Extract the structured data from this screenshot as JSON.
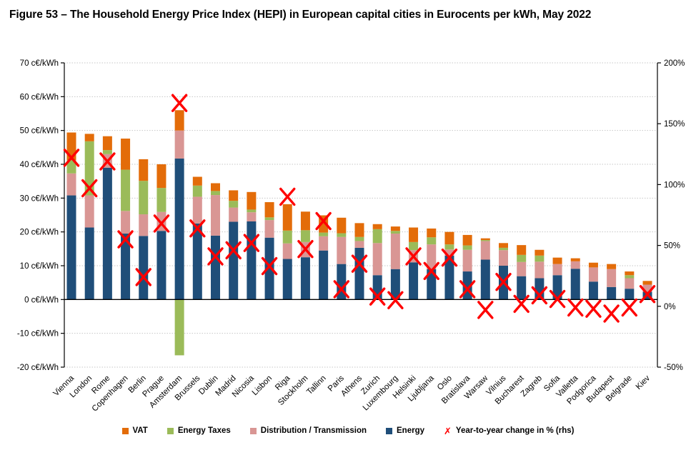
{
  "title": "Figure 53 – The Household Energy Price Index (HEPI) in European capital cities in Eurocents per kWh, May 2022",
  "chart_data": {
    "type": "bar",
    "stacked": true,
    "grid": "dotted horizontal",
    "legend_position": "bottom",
    "categories": [
      "Vienna",
      "London",
      "Rome",
      "Copenhagen",
      "Berlin",
      "Prague",
      "Amsterdam",
      "Brussels",
      "Dublin",
      "Madrid",
      "Nicosia",
      "Lisbon",
      "Riga",
      "Stockholm",
      "Tallinn",
      "Paris",
      "Athens",
      "Zurich",
      "Luxembourg",
      "Helsinki",
      "Ljubljana",
      "Oslo",
      "Bratislava",
      "Warsaw",
      "Vilnius",
      "Bucharest",
      "Zagreb",
      "Sofia",
      "Valletta",
      "Podgorica",
      "Budapest",
      "Belgrade",
      "Kiev"
    ],
    "series": [
      {
        "name": "Energy",
        "color": "#1F4E79",
        "values": [
          30.8,
          21.3,
          39.0,
          19.5,
          18.8,
          20.3,
          41.7,
          22.5,
          18.9,
          23.0,
          23.1,
          18.3,
          12.0,
          12.5,
          14.5,
          10.5,
          15.3,
          7.2,
          9.0,
          11.0,
          9.0,
          13.0,
          8.3,
          11.8,
          10.0,
          6.9,
          6.3,
          7.2,
          9.1,
          5.3,
          3.7,
          3.2,
          2.3
        ]
      },
      {
        "name": "Distribution / Transmission",
        "color": "#D99694",
        "values": [
          6.5,
          9.5,
          4.0,
          6.7,
          6.4,
          5.6,
          8.3,
          7.9,
          12.0,
          4.2,
          2.7,
          5.2,
          4.6,
          4.5,
          4.2,
          8.0,
          2.0,
          9.5,
          10.5,
          3.6,
          7.3,
          1.8,
          6.4,
          5.5,
          4.6,
          4.2,
          4.9,
          3.3,
          2.2,
          4.2,
          5.3,
          3.1,
          2.1
        ]
      },
      {
        "name": "Energy Taxes",
        "color": "#9BBB59",
        "values": [
          3.9,
          16.0,
          1.2,
          12.2,
          9.9,
          7.1,
          -16.5,
          3.3,
          1.2,
          2.0,
          0.8,
          0.8,
          3.8,
          3.5,
          1.1,
          1.1,
          1.2,
          4.1,
          0.8,
          2.4,
          2.1,
          1.5,
          1.3,
          0.3,
          0.7,
          2.1,
          1.8,
          0,
          0,
          0,
          0,
          0.9,
          0
        ]
      },
      {
        "name": "VAT",
        "color": "#E36C09",
        "values": [
          8.2,
          2.2,
          4.1,
          9.2,
          6.4,
          7.0,
          6.0,
          2.6,
          2.3,
          3.1,
          5.2,
          4.5,
          7.8,
          5.5,
          5.1,
          4.6,
          4.1,
          1.5,
          1.3,
          4.3,
          2.6,
          3.7,
          3.1,
          0.5,
          1.4,
          2.9,
          1.7,
          1.9,
          0.9,
          1.4,
          1.5,
          1.1,
          1.1
        ]
      }
    ],
    "markers": {
      "name": "Year-to-year change in % (rhs)",
      "color": "#FF0000",
      "axis": "right",
      "values": [
        122,
        97,
        119,
        55,
        24,
        68,
        167,
        64,
        41,
        46,
        52,
        33,
        90,
        47,
        70,
        14,
        35,
        8,
        5,
        41,
        29,
        40,
        14,
        -3,
        20,
        2,
        9,
        6,
        -1,
        -2,
        -6,
        -1,
        10
      ]
    },
    "left_axis": {
      "min": -20,
      "max": 70,
      "step": 10,
      "ticks": [
        {
          "value": 70,
          "label": "70 c€/kWh"
        },
        {
          "value": 60,
          "label": "60 c€/kWh"
        },
        {
          "value": 50,
          "label": "50 c€/kWh"
        },
        {
          "value": 40,
          "label": "40 c€/kWh"
        },
        {
          "value": 30,
          "label": "30 c€/kWh"
        },
        {
          "value": 20,
          "label": "20 c€/kWh"
        },
        {
          "value": 10,
          "label": "10 c€/kWh"
        },
        {
          "value": 0,
          "label": "0 c€/kWh"
        },
        {
          "value": -10,
          "label": "-10 c€/kWh"
        },
        {
          "value": -20,
          "label": "-20 c€/kWh"
        }
      ]
    },
    "right_axis": {
      "min": -50,
      "max": 200,
      "step": 50,
      "ticks": [
        {
          "value": 200,
          "label": "200%"
        },
        {
          "value": 150,
          "label": "150%"
        },
        {
          "value": 100,
          "label": "100%"
        },
        {
          "value": 50,
          "label": "50%"
        },
        {
          "value": 0,
          "label": "0%"
        },
        {
          "value": -50,
          "label": "-50%"
        }
      ]
    },
    "legend": [
      {
        "label": "VAT",
        "color": "#E36C09",
        "marker": "square"
      },
      {
        "label": "Energy Taxes",
        "color": "#9BBB59",
        "marker": "square"
      },
      {
        "label": "Distribution / Transmission",
        "color": "#D99694",
        "marker": "square"
      },
      {
        "label": "Energy",
        "color": "#1F4E79",
        "marker": "square"
      },
      {
        "label": "Year-to-year change in % (rhs)",
        "color": "#FF0000",
        "marker": "x",
        "glyph": "✗"
      }
    ]
  }
}
